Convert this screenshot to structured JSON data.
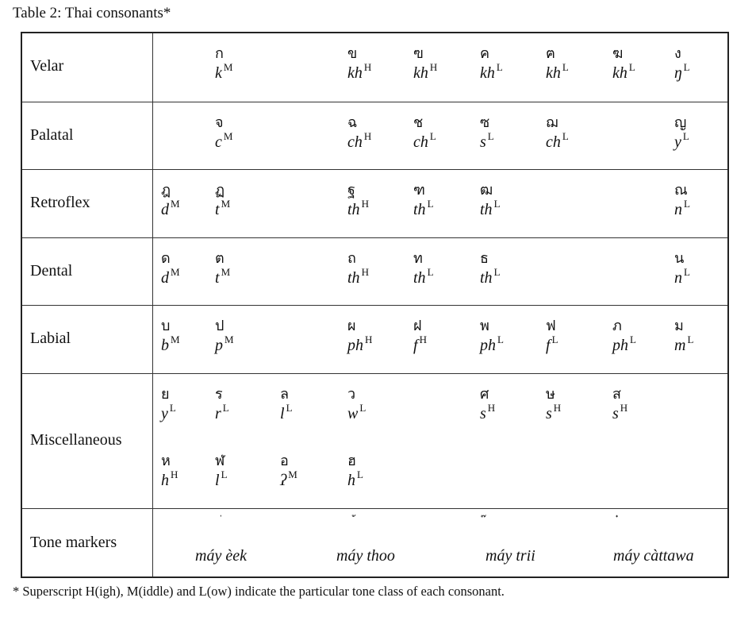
{
  "caption": "Table 2: Thai consonants*",
  "footnote": "* Superscript H(igh), M(iddle) and L(ow) indicate the particular tone class of each consonant.",
  "rows": [
    {
      "label": "Velar",
      "cells": [
        {
          "thai": "ก",
          "tr": "k",
          "tone": "M"
        },
        {
          "thai": "ข",
          "tr": "kh",
          "tone": "H"
        },
        {
          "thai": "ฃ",
          "tr": "kh",
          "tone": "H"
        },
        {
          "thai": "ค",
          "tr": "kh",
          "tone": "L"
        },
        {
          "thai": "ฅ",
          "tr": "kh",
          "tone": "L"
        },
        {
          "thai": "ฆ",
          "tr": "kh",
          "tone": "L"
        },
        {
          "thai": "ง",
          "tr": "ŋ",
          "tone": "L"
        }
      ]
    },
    {
      "label": "Palatal",
      "cells": [
        {
          "thai": "จ",
          "tr": "c",
          "tone": "M"
        },
        {
          "thai": "ฉ",
          "tr": "ch",
          "tone": "H"
        },
        {
          "thai": "ช",
          "tr": "ch",
          "tone": "L"
        },
        {
          "thai": "ซ",
          "tr": "s",
          "tone": "L"
        },
        {
          "thai": "ฌ",
          "tr": "ch",
          "tone": "L"
        },
        {
          "thai": "ญ",
          "tr": "y",
          "tone": "L"
        }
      ]
    },
    {
      "label": "Retroflex",
      "cells": [
        {
          "thai": "ฎ",
          "tr": "d",
          "tone": "M"
        },
        {
          "thai": "ฏ",
          "tr": "t",
          "tone": "M"
        },
        {
          "thai": "ฐ",
          "tr": "th",
          "tone": "H"
        },
        {
          "thai": "ฑ",
          "tr": "th",
          "tone": "L"
        },
        {
          "thai": "ฒ",
          "tr": "th",
          "tone": "L"
        },
        {
          "thai": "ณ",
          "tr": "n",
          "tone": "L"
        }
      ]
    },
    {
      "label": "Dental",
      "cells": [
        {
          "thai": "ด",
          "tr": "d",
          "tone": "M"
        },
        {
          "thai": "ต",
          "tr": "t",
          "tone": "M"
        },
        {
          "thai": "ถ",
          "tr": "th",
          "tone": "H"
        },
        {
          "thai": "ท",
          "tr": "th",
          "tone": "L"
        },
        {
          "thai": "ธ",
          "tr": "th",
          "tone": "L"
        },
        {
          "thai": "น",
          "tr": "n",
          "tone": "L"
        }
      ]
    },
    {
      "label": "Labial",
      "cells": [
        {
          "thai": "บ",
          "tr": "b",
          "tone": "M"
        },
        {
          "thai": "ป",
          "tr": "p",
          "tone": "M"
        },
        {
          "thai": "ผ",
          "tr": "ph",
          "tone": "H"
        },
        {
          "thai": "ฝ",
          "tr": "f",
          "tone": "H"
        },
        {
          "thai": "พ",
          "tr": "ph",
          "tone": "L"
        },
        {
          "thai": "ฟ",
          "tr": "f",
          "tone": "L"
        },
        {
          "thai": "ภ",
          "tr": "ph",
          "tone": "L"
        },
        {
          "thai": "ม",
          "tr": "m",
          "tone": "L"
        }
      ]
    },
    {
      "label": "Miscellaneous",
      "cells": [
        {
          "thai": "ย",
          "tr": "y",
          "tone": "L"
        },
        {
          "thai": "ร",
          "tr": "r",
          "tone": "L"
        },
        {
          "thai": "ล",
          "tr": "l",
          "tone": "L"
        },
        {
          "thai": "ว",
          "tr": "w",
          "tone": "L"
        },
        {
          "thai": "ศ",
          "tr": "s",
          "tone": "H"
        },
        {
          "thai": "ษ",
          "tr": "s",
          "tone": "H"
        },
        {
          "thai": "ส",
          "tr": "s",
          "tone": "H"
        },
        {
          "thai": "ห",
          "tr": "h",
          "tone": "H"
        },
        {
          "thai": "ฬ",
          "tr": "l",
          "tone": "L"
        },
        {
          "thai": "อ",
          "tr": "ʔ",
          "tone": "M"
        },
        {
          "thai": "ฮ",
          "tr": "h",
          "tone": "L"
        }
      ]
    }
  ],
  "tone_markers": {
    "label": "Tone markers",
    "items": [
      {
        "mark": "่",
        "name": "máy èek"
      },
      {
        "mark": "้",
        "name": "máy thoo"
      },
      {
        "mark": "๊",
        "name": "máy trii"
      },
      {
        "mark": "๋",
        "name": "máy càttawa"
      }
    ]
  }
}
